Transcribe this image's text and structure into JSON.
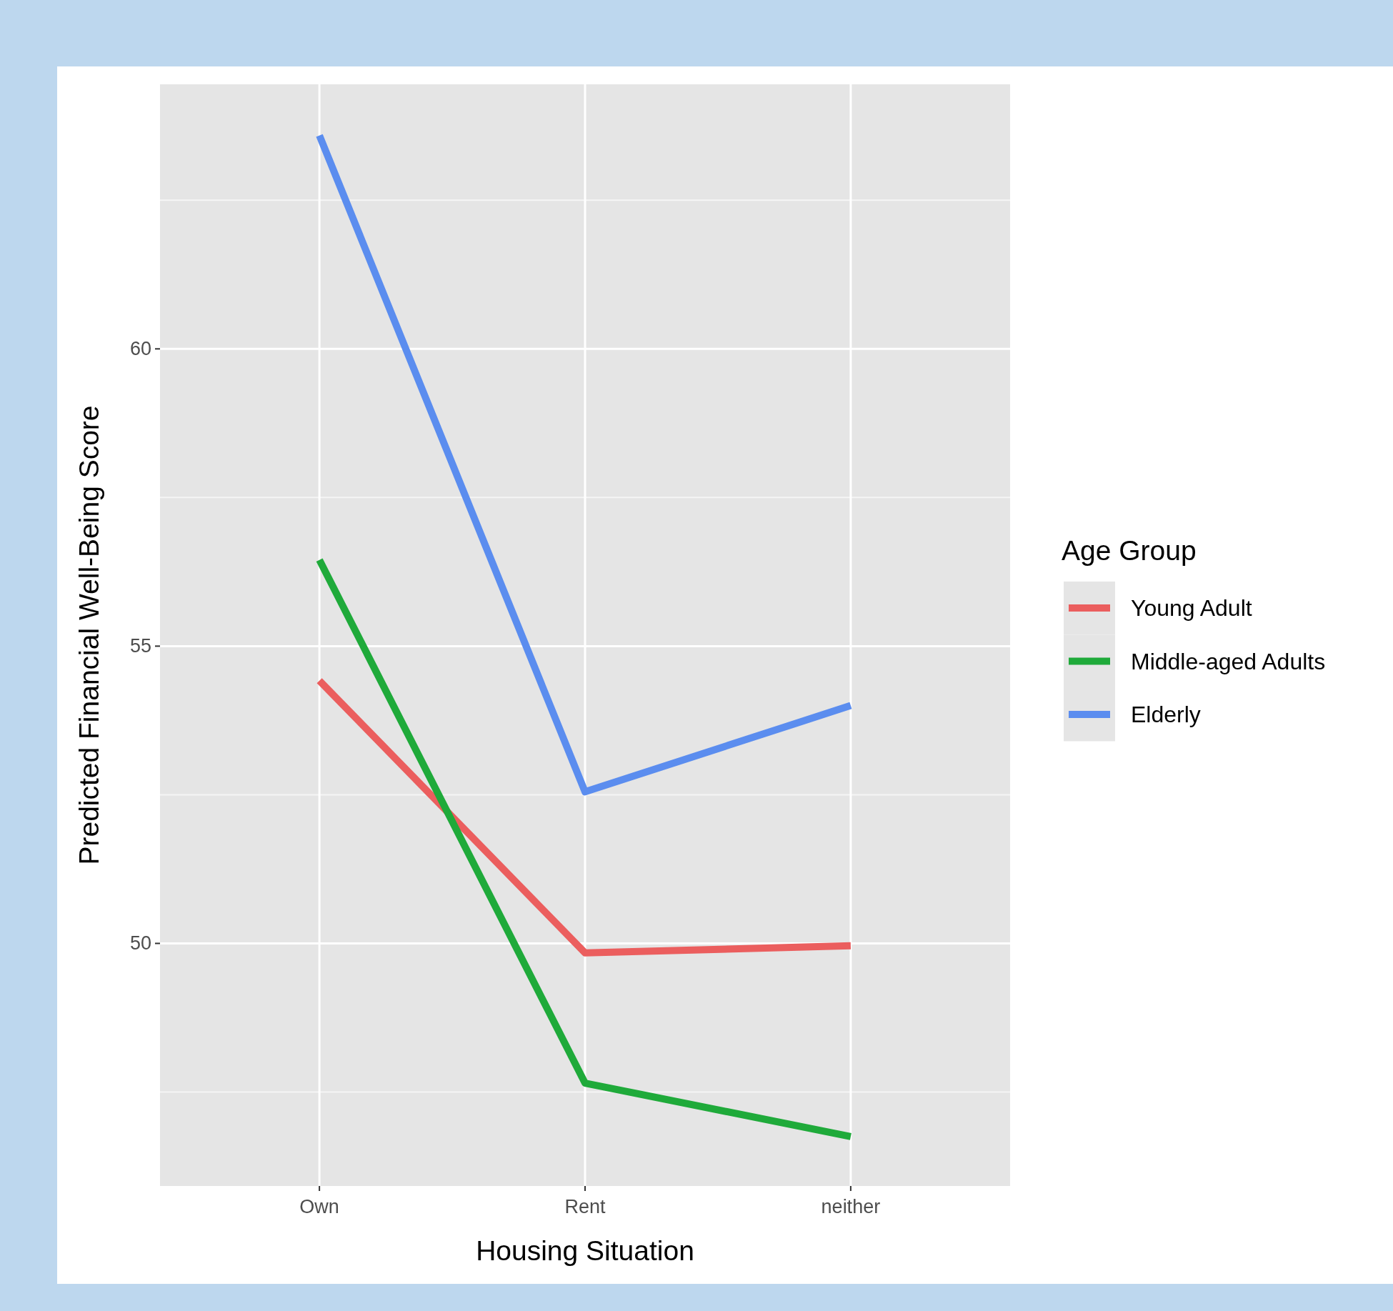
{
  "chart_data": {
    "type": "line",
    "xlabel": "Housing Situation",
    "ylabel": "Predicted Financial Well-Being Score",
    "legend_title": "Age Group",
    "categories": [
      "Own",
      "Rent",
      "neither"
    ],
    "series": [
      {
        "name": "Young Adult",
        "color": "#eb5e5e",
        "values": [
          54.42,
          49.84,
          49.96
        ]
      },
      {
        "name": "Middle-aged Adults",
        "color": "#1faa3a",
        "values": [
          56.45,
          47.65,
          46.75
        ]
      },
      {
        "name": "Elderly",
        "color": "#5b8def",
        "values": [
          63.59,
          52.55,
          54.0
        ]
      }
    ],
    "ylim": [
      45.92,
      64.45
    ],
    "yticks": [
      50,
      55,
      60
    ],
    "grid": true,
    "legend": "right"
  }
}
